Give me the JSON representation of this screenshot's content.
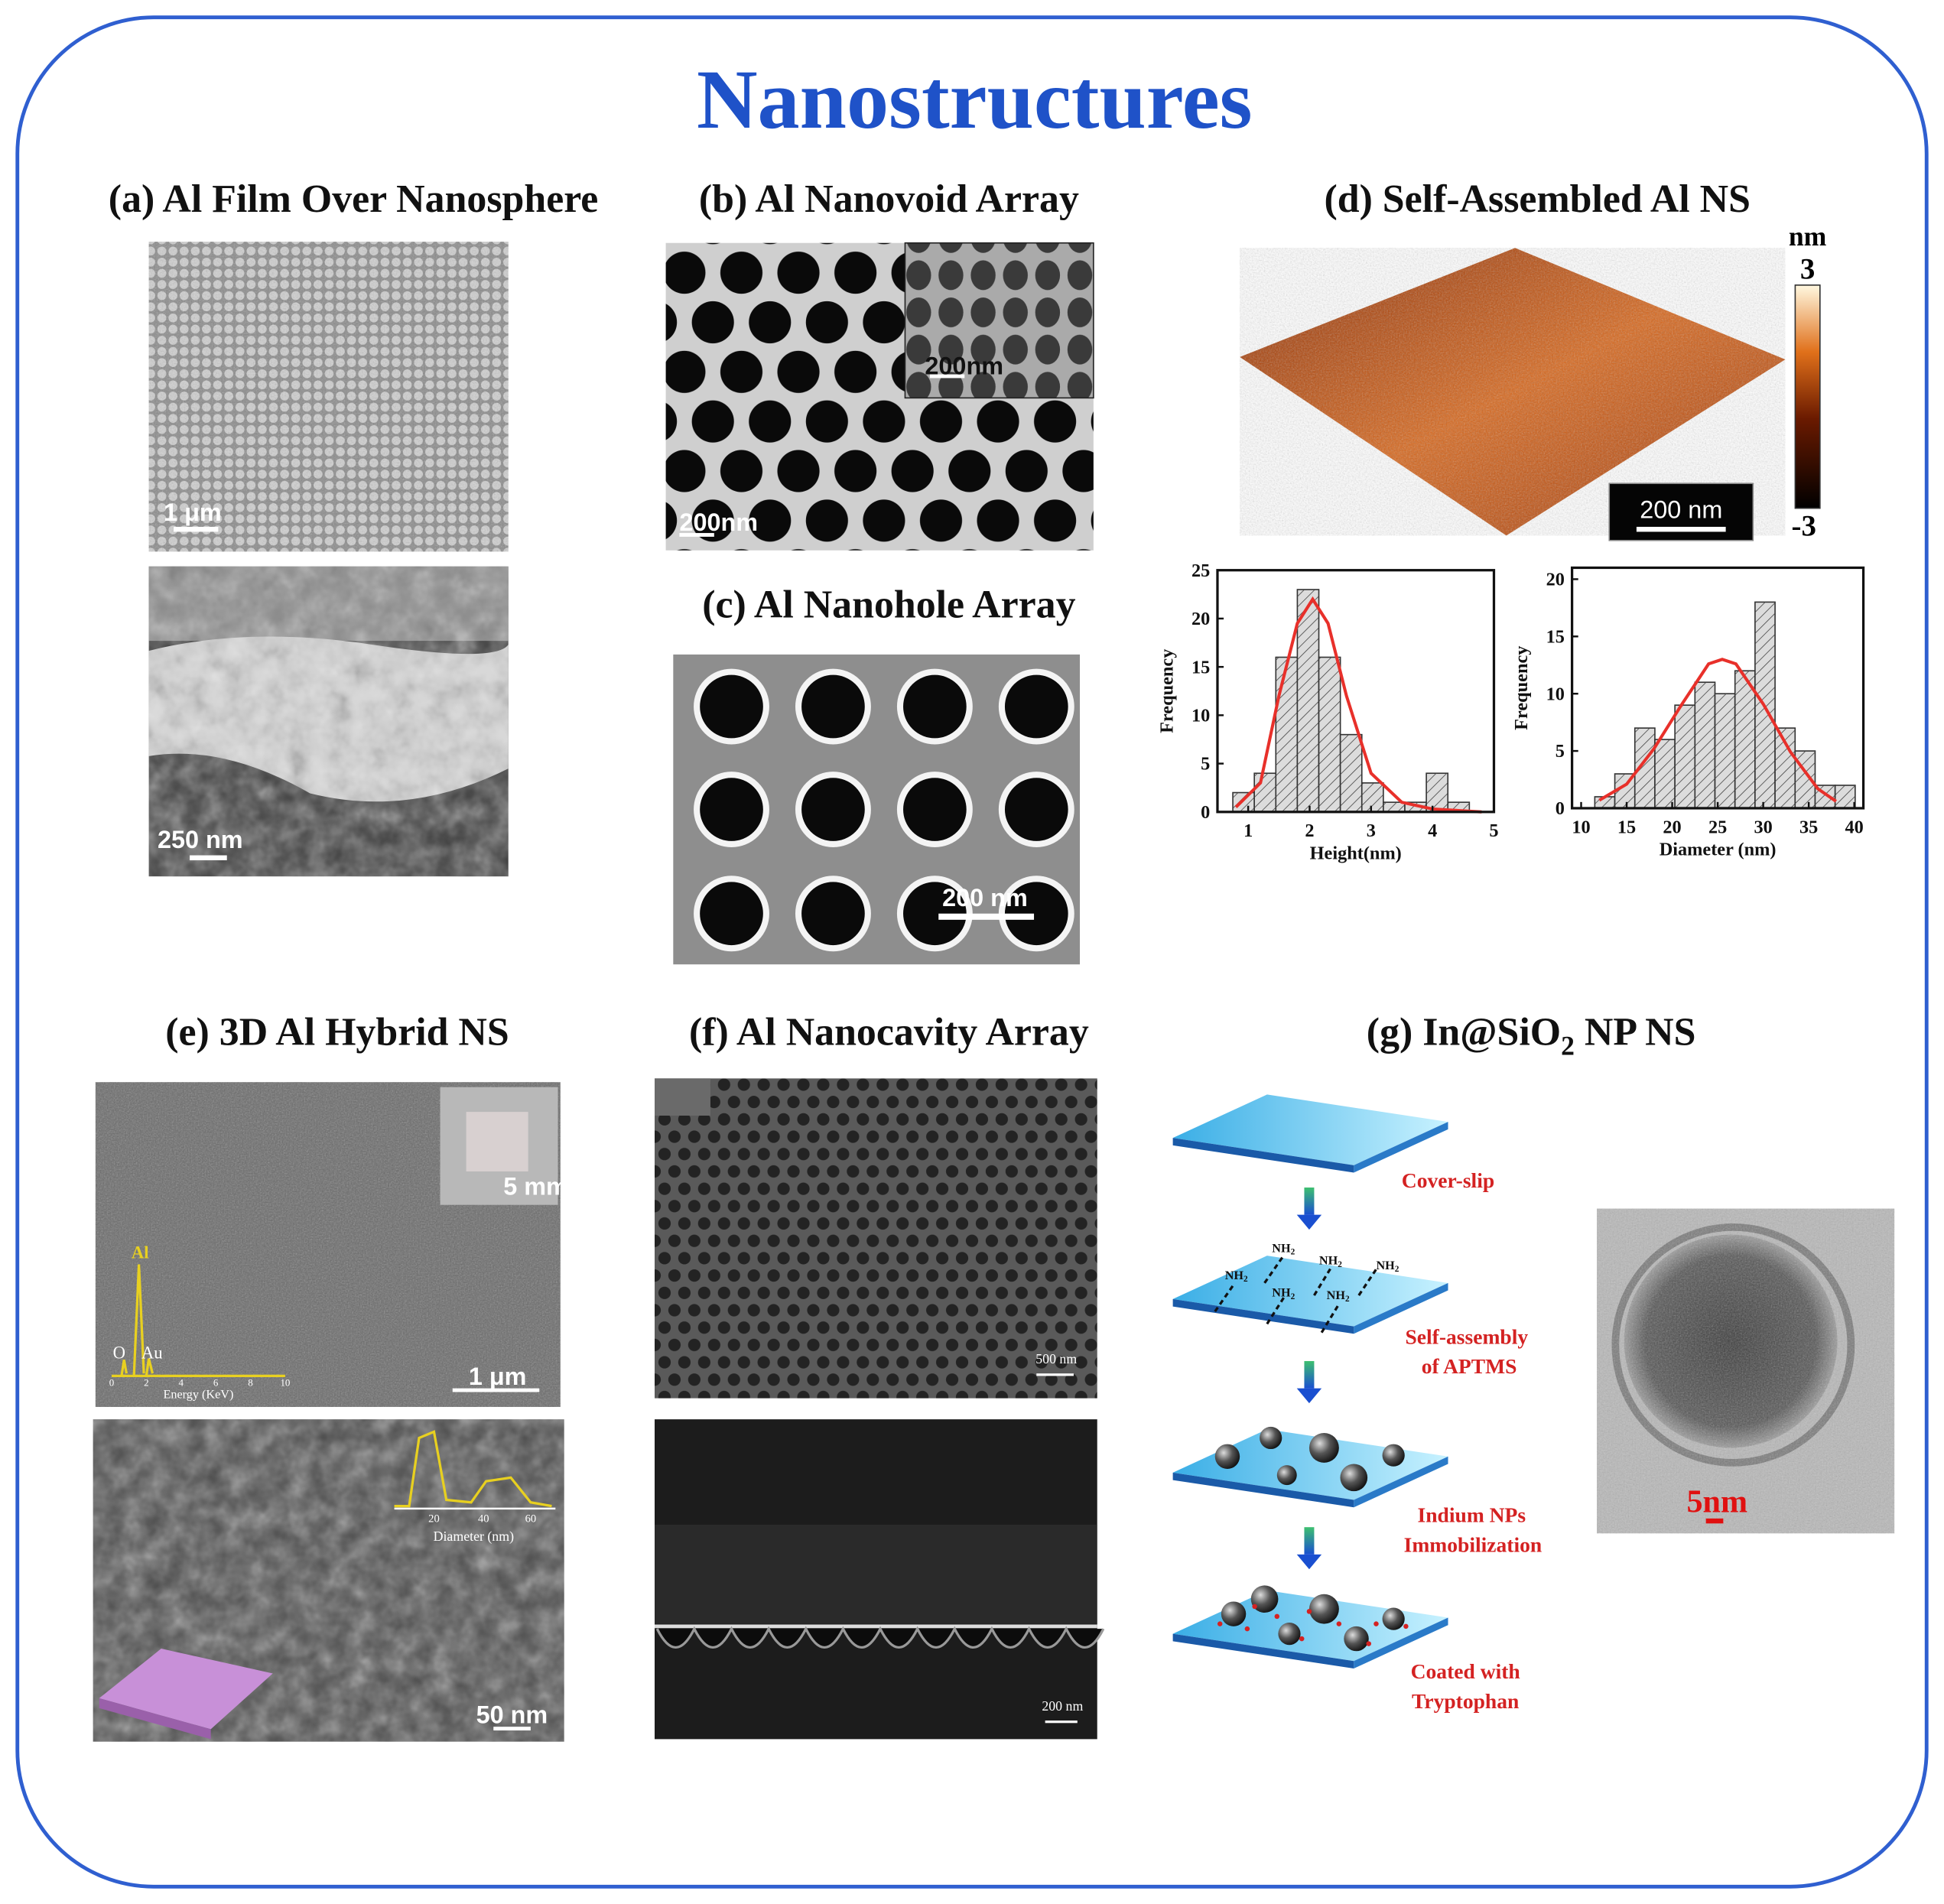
{
  "header": {
    "title": "Nanostructures"
  },
  "panels": {
    "a": {
      "title": "(a) Al Film Over Nanosphere",
      "scale_top": "1 μm",
      "scale_bottom": "250 nm"
    },
    "b": {
      "title": "(b) Al Nanovoid Array",
      "scale_inset": "200nm",
      "scale_main": "200nm"
    },
    "c": {
      "title": "(c) Al Nanohole Array",
      "scale": "200 nm"
    },
    "d": {
      "title": "(d) Self-Assembled Al NS",
      "scale": "200 nm",
      "colorbar_unit": "nm",
      "colorbar_max": "3",
      "colorbar_min": "-3"
    },
    "e": {
      "title": "(e) 3D Al Hybrid NS",
      "inset_scale": "5 mm",
      "scale_top": "1 μm",
      "edx_al": "Al",
      "edx_o": "O",
      "edx_au": "Au",
      "edx_ticks": [
        "0",
        "2",
        "4",
        "6",
        "8",
        "10"
      ],
      "edx_axis": "Energy (KeV)",
      "inset_hist_axis": "Diameter (nm)",
      "inset_hist_ticks": [
        "20",
        "40",
        "60"
      ],
      "scale_bottom": "50 nm"
    },
    "f": {
      "title": "(f) Al Nanocavity Array",
      "scale_top": "500 nm",
      "scale_bottom": "200 nm"
    },
    "g": {
      "title": "(g) In@SiO",
      "title_sub": "2",
      "title_end": " NP NS",
      "step1": "Cover-slip",
      "amine": "NH",
      "amine_sub": "2",
      "step2_line1": "Self-assembly",
      "step2_line2": "of APTMS",
      "step3_line1": "Indium NPs",
      "step3_line2": "Immobilization",
      "step4_line1": "Coated with",
      "step4_line2": "Tryptophan",
      "tem_scale": "5nm"
    }
  },
  "chart_data": [
    {
      "type": "histogram",
      "x_label": "Height(nm)",
      "y_label": "Frequency",
      "bins": [
        0.75,
        1.1,
        1.45,
        1.8,
        2.15,
        2.5,
        2.85,
        3.2,
        3.55,
        3.9,
        4.25,
        4.6
      ],
      "values": [
        2,
        4,
        16,
        23,
        16,
        8,
        3,
        1,
        1,
        4,
        1
      ],
      "color": "#dcdcdc",
      "xlim": [
        0.5,
        5
      ],
      "ylim": [
        0,
        25
      ],
      "xticks": [
        1,
        2,
        3,
        4,
        5
      ],
      "yticks": [
        0,
        5,
        10,
        15,
        20,
        25
      ],
      "fit": {
        "color": "#e8302a",
        "x": [
          0.8,
          1.2,
          1.5,
          1.8,
          2.05,
          2.3,
          2.6,
          3.0,
          3.5,
          4.0,
          4.8
        ],
        "values": [
          0.5,
          3,
          12,
          19.5,
          22,
          19.5,
          12,
          4,
          1,
          0.3,
          0
        ]
      }
    },
    {
      "type": "histogram",
      "x_label": "Diameter (nm)",
      "y_label": "Frequency",
      "bins": [
        11.5,
        13.7,
        15.9,
        18.1,
        20.3,
        22.5,
        24.7,
        26.9,
        29.1,
        31.3,
        33.5,
        35.7,
        37.9,
        40.1
      ],
      "values": [
        1,
        3,
        7,
        6,
        9,
        11,
        10,
        12,
        18,
        7,
        5,
        2,
        2
      ],
      "color": "#dcdcdc",
      "xlim": [
        9,
        41
      ],
      "ylim": [
        0,
        21
      ],
      "xticks": [
        10,
        15,
        20,
        25,
        30,
        35,
        40
      ],
      "yticks": [
        0,
        5,
        10,
        15,
        20
      ],
      "fit": {
        "color": "#e8302a",
        "x": [
          12,
          15,
          18,
          21,
          24,
          25.5,
          27,
          30,
          33,
          36,
          38
        ],
        "values": [
          0.7,
          2.1,
          5.2,
          9,
          12.6,
          13,
          12.6,
          9.1,
          4.9,
          1.7,
          0.6
        ]
      }
    }
  ]
}
